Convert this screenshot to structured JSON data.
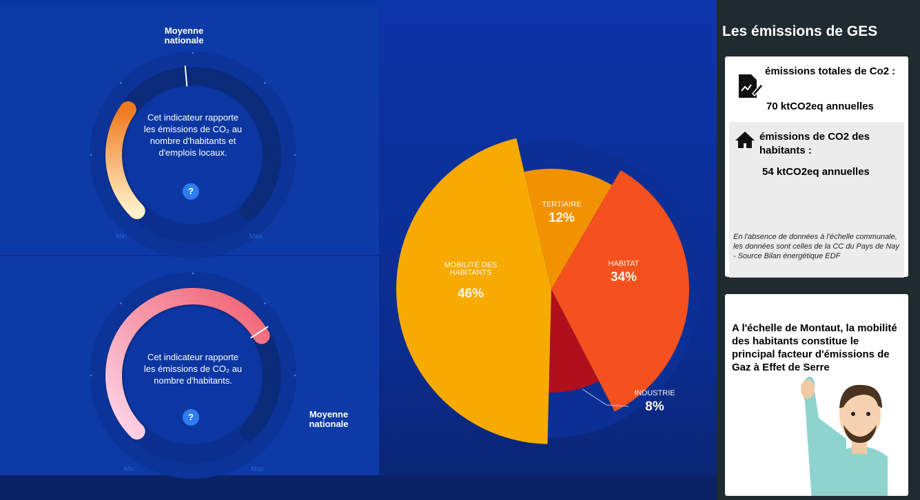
{
  "gauges": [
    {
      "average": "Moyenne nationale",
      "description": "Cet indicateur rapporte les émissions de CO₂ au nombre d'habitants et d'emplois locaux.",
      "help": "?",
      "min": "Min",
      "max": "Max"
    },
    {
      "average": "Moyenne nationale",
      "description": "Cet indicateur rapporte les émissions de CO₂ au nombre d'habitants.",
      "help": "?",
      "min": "Min",
      "max": "Max"
    }
  ],
  "chart_data": {
    "type": "pie",
    "categories": [
      "TERTIAIRE",
      "HABITAT",
      "INDUSTRIE",
      "MOBILITÉ DES HABITANTS"
    ],
    "values": [
      12,
      34,
      8,
      46
    ],
    "value_labels": [
      "12%",
      "34%",
      "8%",
      "46%"
    ],
    "colors": [
      "#f39200",
      "#f4511e",
      "#b0101c",
      "#f7aa00"
    ]
  },
  "panel": {
    "title": "Les émissions de GES",
    "total": {
      "label": "émissions totales de Co2 :",
      "value": "70 ktCO2eq annuelles"
    },
    "residents": {
      "label": "émissions de CO2 des habitants :",
      "value": "54 ktCO2eq annuelles"
    },
    "note": "En l'absence de données à l'échelle communale, les données sont celles de la CC du Pays de Nay - Source Bilan énergétique EDF",
    "message": "A l'échelle de Montaut, la mobilité des habitants constitue le principal facteur d'émissions de Gaz à Effet de Serre"
  }
}
